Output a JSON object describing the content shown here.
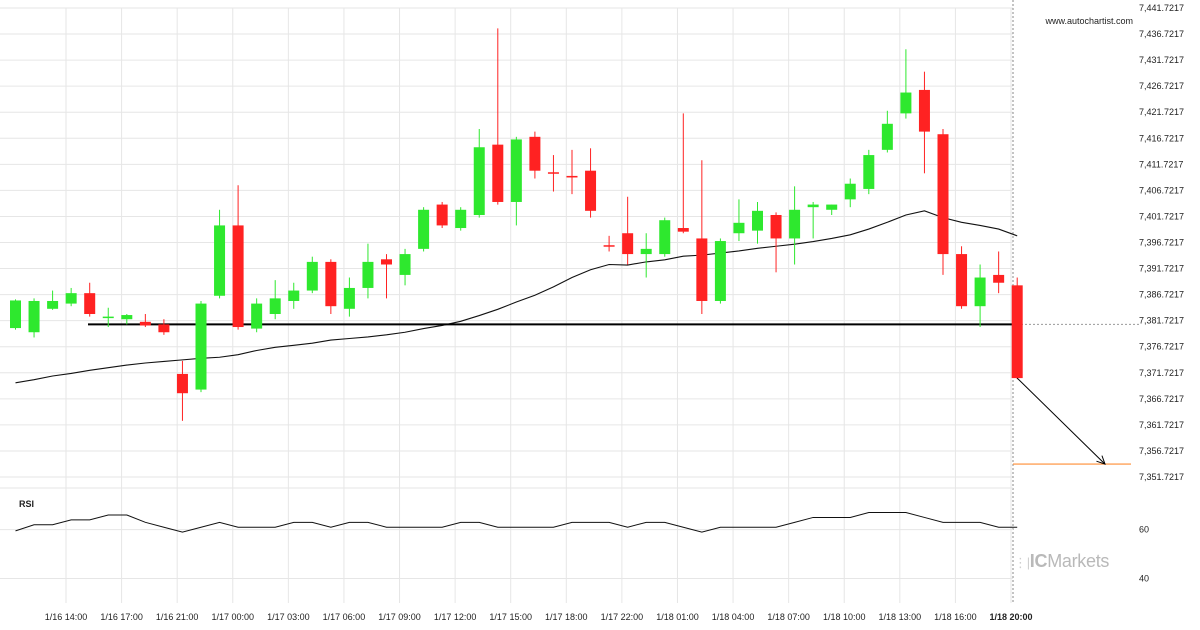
{
  "brand_url": "www.autochartist.com",
  "watermark": {
    "prefix": "IC",
    "suffix": "Markets"
  },
  "rsi_label": "RSI",
  "colors": {
    "bull": "#2ee82e",
    "bear": "#ff2222",
    "ma": "#111111",
    "level": "#000000",
    "target": "#ff8c33",
    "grid": "#e6e6e6"
  },
  "chart_data": {
    "type": "candlestick",
    "price_axis": {
      "range": [
        7350.0,
        7442.0
      ],
      "ticks": [
        "7,441.7217",
        "7,436.7217",
        "7,431.7217",
        "7,426.7217",
        "7,421.7217",
        "7,416.7217",
        "7,411.7217",
        "7,406.7217",
        "7,401.7217",
        "7,396.7217",
        "7,391.7217",
        "7,386.7217",
        "7,381.7217",
        "7,376.7217",
        "7,371.7217",
        "7,366.7217",
        "7,361.7217",
        "7,356.7217",
        "7,351.7217"
      ]
    },
    "time_axis_labels": [
      "1/16 14:00",
      "1/16 17:00",
      "1/16 21:00",
      "1/17 00:00",
      "1/17 03:00",
      "1/17 06:00",
      "1/17 09:00",
      "1/17 12:00",
      "1/17 15:00",
      "1/17 18:00",
      "1/17 22:00",
      "1/18 01:00",
      "1/18 04:00",
      "1/18 07:00",
      "1/18 10:00",
      "1/18 13:00",
      "1/18 16:00",
      "1/18 20:00"
    ],
    "candles": [
      {
        "o": 7380.3,
        "h": 7385.8,
        "l": 7380.0,
        "c": 7385.6
      },
      {
        "o": 7379.5,
        "h": 7386.0,
        "l": 7378.5,
        "c": 7385.5
      },
      {
        "o": 7384.0,
        "h": 7387.5,
        "l": 7383.8,
        "c": 7385.5
      },
      {
        "o": 7385.0,
        "h": 7388.0,
        "l": 7384.5,
        "c": 7387.0
      },
      {
        "o": 7387.0,
        "h": 7389.0,
        "l": 7382.5,
        "c": 7383.0
      },
      {
        "o": 7382.5,
        "h": 7384.2,
        "l": 7380.5,
        "c": 7382.5
      },
      {
        "o": 7382.0,
        "h": 7383.0,
        "l": 7381.0,
        "c": 7382.8
      },
      {
        "o": 7381.5,
        "h": 7383.0,
        "l": 7380.5,
        "c": 7380.8
      },
      {
        "o": 7381.0,
        "h": 7382.0,
        "l": 7379.0,
        "c": 7379.5
      },
      {
        "o": 7371.5,
        "h": 7374.0,
        "l": 7362.5,
        "c": 7367.8
      },
      {
        "o": 7368.5,
        "h": 7385.5,
        "l": 7368.0,
        "c": 7385.0
      },
      {
        "o": 7386.5,
        "h": 7403.0,
        "l": 7386.0,
        "c": 7400.0
      },
      {
        "o": 7400.0,
        "h": 7407.7,
        "l": 7380.0,
        "c": 7380.5
      },
      {
        "o": 7380.2,
        "h": 7386.0,
        "l": 7379.5,
        "c": 7385.0
      },
      {
        "o": 7383.0,
        "h": 7389.5,
        "l": 7382.0,
        "c": 7386.0
      },
      {
        "o": 7385.5,
        "h": 7389.0,
        "l": 7384.0,
        "c": 7387.5
      },
      {
        "o": 7387.5,
        "h": 7394.0,
        "l": 7387.0,
        "c": 7393.0
      },
      {
        "o": 7393.0,
        "h": 7393.5,
        "l": 7383.0,
        "c": 7384.5
      },
      {
        "o": 7384.0,
        "h": 7390.0,
        "l": 7382.5,
        "c": 7388.0
      },
      {
        "o": 7388.0,
        "h": 7396.5,
        "l": 7386.0,
        "c": 7393.0
      },
      {
        "o": 7393.5,
        "h": 7394.5,
        "l": 7386.0,
        "c": 7392.5
      },
      {
        "o": 7390.5,
        "h": 7395.5,
        "l": 7388.5,
        "c": 7394.5
      },
      {
        "o": 7395.5,
        "h": 7403.5,
        "l": 7395.0,
        "c": 7403.0
      },
      {
        "o": 7404.0,
        "h": 7404.5,
        "l": 7399.5,
        "c": 7400.0
      },
      {
        "o": 7399.5,
        "h": 7403.5,
        "l": 7399.0,
        "c": 7403.0
      },
      {
        "o": 7402.0,
        "h": 7418.5,
        "l": 7401.5,
        "c": 7415.0
      },
      {
        "o": 7415.5,
        "h": 7437.8,
        "l": 7404.0,
        "c": 7404.5
      },
      {
        "o": 7404.5,
        "h": 7417.0,
        "l": 7400.0,
        "c": 7416.5
      },
      {
        "o": 7417.0,
        "h": 7418.0,
        "l": 7409.0,
        "c": 7410.5
      },
      {
        "o": 7410.2,
        "h": 7413.5,
        "l": 7406.5,
        "c": 7410.0
      },
      {
        "o": 7409.5,
        "h": 7414.5,
        "l": 7406.0,
        "c": 7409.2
      },
      {
        "o": 7410.5,
        "h": 7414.8,
        "l": 7401.5,
        "c": 7402.8
      },
      {
        "o": 7396.2,
        "h": 7398.0,
        "l": 7395.0,
        "c": 7396.0
      },
      {
        "o": 7398.5,
        "h": 7405.5,
        "l": 7392.5,
        "c": 7394.5
      },
      {
        "o": 7394.5,
        "h": 7398.5,
        "l": 7390.0,
        "c": 7395.5
      },
      {
        "o": 7394.5,
        "h": 7401.5,
        "l": 7394.0,
        "c": 7401.0
      },
      {
        "o": 7399.5,
        "h": 7421.5,
        "l": 7398.5,
        "c": 7398.8
      },
      {
        "o": 7397.5,
        "h": 7412.5,
        "l": 7383.0,
        "c": 7385.5
      },
      {
        "o": 7385.5,
        "h": 7397.5,
        "l": 7385.0,
        "c": 7397.0
      },
      {
        "o": 7398.5,
        "h": 7405.0,
        "l": 7397.0,
        "c": 7400.5
      },
      {
        "o": 7399.0,
        "h": 7404.5,
        "l": 7396.5,
        "c": 7402.8
      },
      {
        "o": 7402.0,
        "h": 7402.5,
        "l": 7391.0,
        "c": 7397.5
      },
      {
        "o": 7397.5,
        "h": 7407.5,
        "l": 7392.5,
        "c": 7403.0
      },
      {
        "o": 7403.5,
        "h": 7404.5,
        "l": 7397.5,
        "c": 7404.0
      },
      {
        "o": 7403.0,
        "h": 7404.0,
        "l": 7402.0,
        "c": 7404.0
      },
      {
        "o": 7405.0,
        "h": 7409.0,
        "l": 7403.5,
        "c": 7408.0
      },
      {
        "o": 7407.0,
        "h": 7414.5,
        "l": 7406.0,
        "c": 7413.5
      },
      {
        "o": 7414.5,
        "h": 7422.0,
        "l": 7414.0,
        "c": 7419.5
      },
      {
        "o": 7421.5,
        "h": 7433.8,
        "l": 7420.5,
        "c": 7425.5
      },
      {
        "o": 7426.0,
        "h": 7429.5,
        "l": 7410.0,
        "c": 7418.0
      },
      {
        "o": 7417.5,
        "h": 7418.5,
        "l": 7390.5,
        "c": 7394.5
      },
      {
        "o": 7394.5,
        "h": 7396.0,
        "l": 7384.0,
        "c": 7384.5
      },
      {
        "o": 7384.5,
        "h": 7392.5,
        "l": 7380.5,
        "c": 7390.0
      },
      {
        "o": 7390.5,
        "h": 7395.0,
        "l": 7387.0,
        "c": 7389.0
      },
      {
        "o": 7388.5,
        "h": 7390.0,
        "l": 7370.5,
        "c": 7370.7
      }
    ],
    "moving_average": [
      7369.8,
      7370.4,
      7371.1,
      7371.6,
      7372.2,
      7372.7,
      7373.2,
      7373.6,
      7373.9,
      7374.2,
      7374.5,
      7374.7,
      7375.2,
      7376.0,
      7376.6,
      7377.0,
      7377.4,
      7378.0,
      7378.3,
      7378.6,
      7379.0,
      7379.5,
      7380.2,
      7380.8,
      7381.6,
      7382.7,
      7383.9,
      7385.3,
      7386.6,
      7388.2,
      7390.0,
      7391.5,
      7392.5,
      7392.4,
      7393.0,
      7393.4,
      7394.1,
      7394.3,
      7394.7,
      7395.1,
      7395.6,
      7396.0,
      7396.4,
      7396.9,
      7397.5,
      7398.2,
      7399.3,
      7400.6,
      7402.0,
      7402.8,
      7401.5,
      7400.6,
      7400.0,
      7399.3,
      7398.0
    ],
    "breakout_level": 7381.0,
    "target_level": 7354.2,
    "rsi": {
      "ticks": [
        "60",
        "40"
      ],
      "range": [
        30,
        75
      ],
      "values": [
        59.5,
        62,
        62,
        64,
        64,
        66,
        66,
        63,
        61,
        59,
        61,
        63,
        61,
        61,
        61,
        63,
        63,
        61,
        63,
        63,
        61,
        61,
        61,
        61,
        63,
        63,
        61,
        61,
        61,
        61,
        63,
        63,
        63,
        61,
        63,
        63,
        61,
        59,
        61,
        61,
        61,
        61,
        63,
        65,
        65,
        65,
        67,
        67,
        67,
        65,
        63,
        63,
        63,
        61,
        61
      ]
    }
  }
}
